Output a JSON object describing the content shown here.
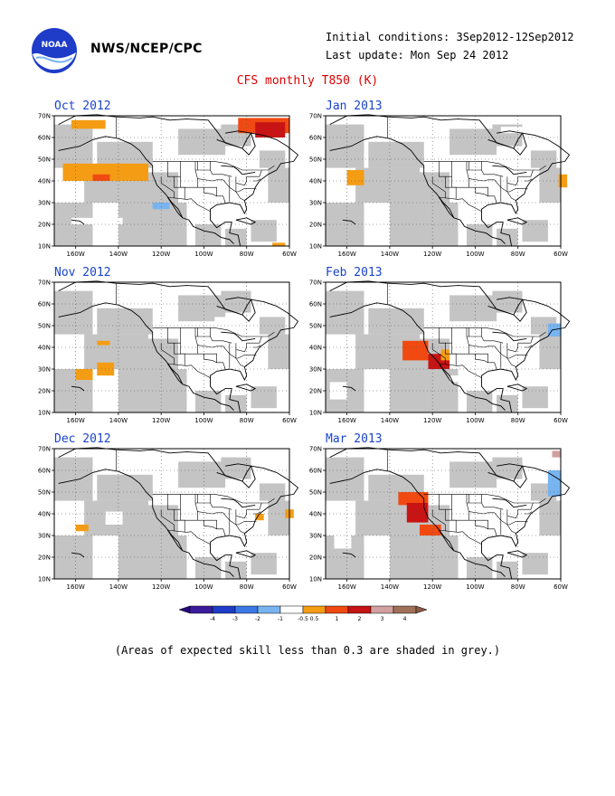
{
  "header": {
    "org": "NWS/NCEP/CPC",
    "initial_conditions": "Initial conditions: 3Sep2012-12Sep2012",
    "last_update": "Last update: Mon Sep 24 2012",
    "title": "CFS monthly T850 (K)"
  },
  "logo": {
    "text": "NOAA",
    "icon": "noaa-logo-icon"
  },
  "map": {
    "lat_labels": [
      "70N",
      "60N",
      "50N",
      "40N",
      "30N",
      "20N",
      "10N"
    ],
    "lon_labels": [
      "160W",
      "140W",
      "120W",
      "100W",
      "80W",
      "60W"
    ],
    "lat_range": [
      10,
      70
    ],
    "lon_range": [
      -170,
      -60
    ]
  },
  "panels": [
    {
      "month": "Oct 2012",
      "anomalies": [
        {
          "lon": -162,
          "lat": 64,
          "dlon": 16,
          "dlat": 4,
          "level": 0.5
        },
        {
          "lon": -84,
          "lat": 62,
          "dlon": 24,
          "dlat": 7,
          "level": 1
        },
        {
          "lon": -76,
          "lat": 60,
          "dlon": 14,
          "dlat": 7,
          "level": 2
        },
        {
          "lon": -166,
          "lat": 40,
          "dlon": 40,
          "dlat": 8,
          "level": 0.5
        },
        {
          "lon": -152,
          "lat": 40,
          "dlon": 8,
          "dlat": 3,
          "level": 1
        },
        {
          "lon": -124,
          "lat": 27,
          "dlon": 8,
          "dlat": 3,
          "level": -1
        },
        {
          "lon": -162,
          "lat": 20,
          "dlon": 24,
          "dlat": 3,
          "level": -0.5
        },
        {
          "lon": -68,
          "lat": 10,
          "dlon": 6,
          "dlat": 1.5,
          "level": 0.5
        }
      ]
    },
    {
      "month": "Jan 2013",
      "anomalies": [
        {
          "lon": -160,
          "lat": 38,
          "dlon": 8,
          "dlat": 7,
          "level": 0.5
        },
        {
          "lon": -61,
          "lat": 37,
          "dlon": 4,
          "dlat": 6,
          "level": 0.5
        },
        {
          "lon": -88,
          "lat": 62,
          "dlon": 10,
          "dlat": 3,
          "level": -0.5
        }
      ]
    },
    {
      "month": "Nov 2012",
      "anomalies": [
        {
          "lon": -150,
          "lat": 27,
          "dlon": 8,
          "dlat": 6,
          "level": 0.5
        },
        {
          "lon": -160,
          "lat": 25,
          "dlon": 8,
          "dlat": 5,
          "level": 0.5
        },
        {
          "lon": -150,
          "lat": 41,
          "dlon": 6,
          "dlat": 2,
          "level": 0.5
        },
        {
          "lon": -95,
          "lat": 50,
          "dlon": 20,
          "dlat": 4,
          "level": -0.5
        },
        {
          "lon": -146,
          "lat": 16,
          "dlon": 6,
          "dlat": 3,
          "level": -0.5
        }
      ]
    },
    {
      "month": "Feb 2013",
      "anomalies": [
        {
          "lon": -134,
          "lat": 34,
          "dlon": 12,
          "dlat": 9,
          "level": 1
        },
        {
          "lon": -122,
          "lat": 30,
          "dlon": 10,
          "dlat": 7,
          "level": 2
        },
        {
          "lon": -116,
          "lat": 34,
          "dlon": 4,
          "dlat": 5,
          "level": 0.5
        },
        {
          "lon": -168,
          "lat": 16,
          "dlon": 8,
          "dlat": 8,
          "level": -0.5
        },
        {
          "lon": -66,
          "lat": 45,
          "dlon": 6,
          "dlat": 6,
          "level": -1
        },
        {
          "lon": -112,
          "lat": 24,
          "dlon": 4,
          "dlat": 3,
          "level": -0.5
        }
      ]
    },
    {
      "month": "Dec 2012",
      "anomalies": [
        {
          "lon": -160,
          "lat": 32,
          "dlon": 6,
          "dlat": 3,
          "level": 0.5
        },
        {
          "lon": -146,
          "lat": 35,
          "dlon": 8,
          "dlat": 6,
          "level": -0.5
        },
        {
          "lon": -62,
          "lat": 38,
          "dlon": 4,
          "dlat": 4,
          "level": 0.5
        },
        {
          "lon": -76,
          "lat": 37,
          "dlon": 4,
          "dlat": 3,
          "level": 0.5
        }
      ]
    },
    {
      "month": "Mar 2013",
      "anomalies": [
        {
          "lon": -136,
          "lat": 44,
          "dlon": 14,
          "dlat": 6,
          "level": 1
        },
        {
          "lon": -132,
          "lat": 36,
          "dlon": 10,
          "dlat": 9,
          "level": 2
        },
        {
          "lon": -126,
          "lat": 30,
          "dlon": 10,
          "dlat": 5,
          "level": 1
        },
        {
          "lon": -166,
          "lat": 24,
          "dlon": 8,
          "dlat": 6,
          "level": -0.5
        },
        {
          "lon": -66,
          "lat": 48,
          "dlon": 6,
          "dlat": 12,
          "level": -1
        },
        {
          "lon": -108,
          "lat": 26,
          "dlon": 6,
          "dlat": 4,
          "level": -0.5
        },
        {
          "lon": -64,
          "lat": 66,
          "dlon": 4,
          "dlat": 3,
          "level": 3
        }
      ]
    }
  ],
  "colorbar": {
    "labels": [
      "-4",
      "-3",
      "-2",
      "-1",
      "-0.5",
      "0.5",
      "1",
      "2",
      "3",
      "4"
    ],
    "colors": [
      "#3a1c9a",
      "#1e3cc8",
      "#3a78e6",
      "#78b4f0",
      "#ffffff",
      "#f49c14",
      "#f04a12",
      "#c81414",
      "#d2a0a0",
      "#a07058"
    ],
    "end_colors": [
      "#2a0a7a",
      "#8c5a46"
    ]
  },
  "footnote": "(Areas of expected skill less than 0.3 are shaded in grey.)",
  "colors": {
    "skill_grey": "#c4c4c4",
    "title": "#dd0000",
    "panel_title": "#1a44cc"
  }
}
